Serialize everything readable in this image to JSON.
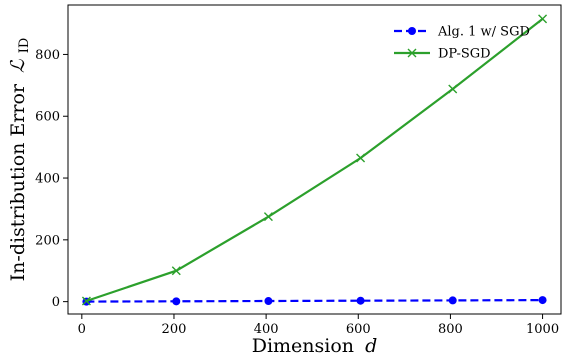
{
  "chart_data": {
    "type": "line",
    "title": "",
    "xlabel": "Dimension",
    "xlabel_var": "d",
    "ylabel": "In-distribution Error",
    "ylabel_symbol": "ℒ",
    "ylabel_subscript": "ID",
    "xlim": [
      -30,
      1040
    ],
    "ylim": [
      -40,
      960
    ],
    "xticks": [
      0,
      200,
      400,
      600,
      800,
      1000
    ],
    "yticks": [
      0,
      200,
      400,
      600,
      800
    ],
    "grid": false,
    "legend_position": "top-right",
    "series": [
      {
        "name": "Alg. 1 w/ SGD",
        "color": "#0000ff",
        "marker": "circle",
        "linestyle": "dashed",
        "x": [
          10,
          205,
          405,
          605,
          805,
          1000
        ],
        "y": [
          0,
          1,
          2,
          3,
          4,
          5
        ]
      },
      {
        "name": "DP-SGD",
        "color": "#2ca02c",
        "marker": "x",
        "linestyle": "solid",
        "x": [
          10,
          205,
          405,
          605,
          805,
          1000
        ],
        "y": [
          2,
          100,
          275,
          465,
          688,
          915
        ]
      }
    ]
  }
}
